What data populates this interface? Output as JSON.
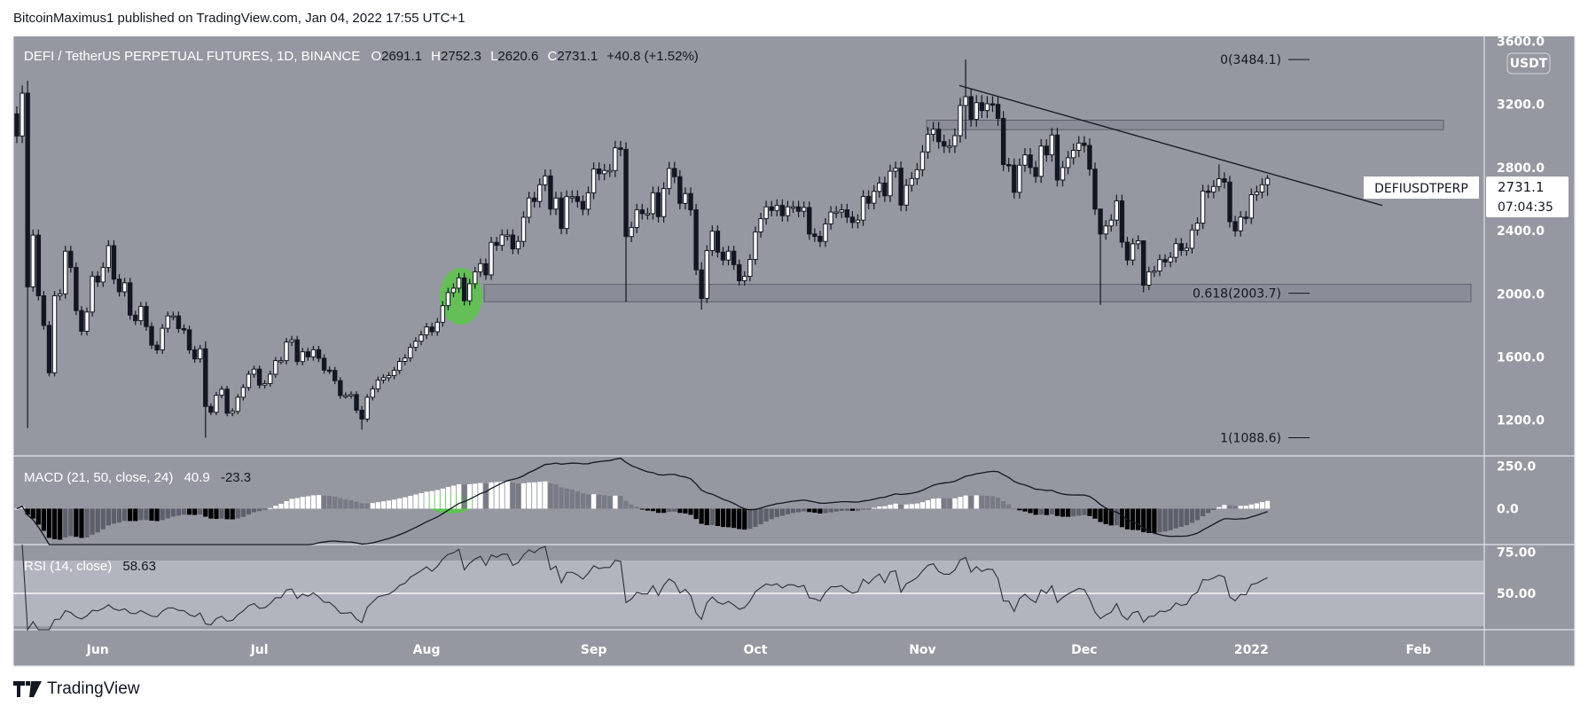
{
  "header": {
    "published": "BitcoinMaximus1 published on TradingView.com, Jan 04, 2022 17:55 UTC+1"
  },
  "legend": {
    "symbol": "DEFI / TetherUS PERPETUAL FUTURES, 1D, BINANCE",
    "o_label": "O",
    "o": "2691.1",
    "h_label": "H",
    "h": "2752.3",
    "l_label": "L",
    "l": "2620.6",
    "c_label": "C",
    "c": "2731.1",
    "change": "+40.8 (+1.52%)"
  },
  "price_axis": {
    "currency": "USDT",
    "ticks": [
      "3600.0",
      "3200.0",
      "2800.0",
      "2400.0",
      "2000.0",
      "1600.0",
      "1200.0"
    ],
    "tick_values": [
      3600,
      3200,
      2800,
      2400,
      2000,
      1600,
      1200
    ],
    "symbol_label": "DEFIUSDTPERP",
    "last_price": "2731.1",
    "countdown": "07:04:35"
  },
  "fib": {
    "level_0": "0(3484.1)",
    "level_0_value": 3484.1,
    "level_618": "0.618(2003.7)",
    "level_618_value": 2003.7,
    "level_1": "1(1088.6)",
    "level_1_value": 1088.6
  },
  "macd": {
    "label": "MACD (21, 50, close, 24)",
    "hist_value": "40.9",
    "macd_value": "-23.3",
    "ticks": [
      "250.0",
      "0.0"
    ],
    "tick_values": [
      250,
      0
    ]
  },
  "rsi": {
    "label": "RSI (14, close)",
    "value": "58.63",
    "ticks": [
      "75.00",
      "50.00"
    ],
    "tick_values": [
      75,
      50
    ]
  },
  "time_axis": {
    "labels": [
      "Jun",
      "Jul",
      "Aug",
      "Sep",
      "Oct",
      "Nov",
      "Dec",
      "2022",
      "Feb"
    ]
  },
  "footer": {
    "brand": "TradingView"
  },
  "colors": {
    "pane_bg": "#9598a1",
    "rsi_band": "#b2b5be",
    "up_candle": "#ffffff",
    "down_candle": "#131722",
    "highlight": "#5cc54a",
    "zone": "#868993"
  },
  "chart_data": {
    "type": "candlestick",
    "title": "DEFI / TetherUS PERPETUAL FUTURES, 1D, BINANCE",
    "x_start": "2021-05-17",
    "x_end": "2022-01-04",
    "interval": "1D",
    "ylim": [
      1000,
      3650
    ],
    "grid": false,
    "closes": [
      3000,
      3271,
      2044,
      2372,
      1988,
      1800,
      1500,
      1988,
      2000,
      2270,
      2167,
      1894,
      1763,
      1885,
      2112,
      2075,
      2167,
      2305,
      2093,
      2013,
      2070,
      1865,
      1830,
      1920,
      1793,
      1675,
      1645,
      1782,
      1860,
      1860,
      1780,
      1772,
      1645,
      1588,
      1652,
      1287,
      1250,
      1358,
      1396,
      1244,
      1256,
      1345,
      1407,
      1491,
      1523,
      1422,
      1432,
      1491,
      1577,
      1577,
      1695,
      1708,
      1571,
      1633,
      1601,
      1646,
      1592,
      1517,
      1515,
      1450,
      1356,
      1356,
      1362,
      1263,
      1207,
      1345,
      1398,
      1454,
      1469,
      1482,
      1515,
      1572,
      1594,
      1661,
      1700,
      1740,
      1790,
      1760,
      1820,
      1925,
      2008,
      2036,
      2101,
      1956,
      2064,
      2139,
      2191,
      2120,
      2326,
      2307,
      2373,
      2373,
      2285,
      2332,
      2485,
      2607,
      2585,
      2691,
      2747,
      2537,
      2607,
      2414,
      2616,
      2616,
      2585,
      2536,
      2640,
      2791,
      2761,
      2781,
      2781,
      2925,
      2915,
      2363,
      2420,
      2532,
      2508,
      2508,
      2640,
      2489,
      2667,
      2794,
      2742,
      2573,
      2635,
      2532,
      2152,
      1971,
      2274,
      2397,
      2264,
      2214,
      2270,
      2185,
      2083,
      2111,
      2218,
      2392,
      2476,
      2551,
      2528,
      2560,
      2495,
      2551,
      2551,
      2523,
      2547,
      2379,
      2364,
      2332,
      2443,
      2518,
      2518,
      2532,
      2486,
      2452,
      2467,
      2617,
      2574,
      2649,
      2702,
      2621,
      2777,
      2796,
      2562,
      2687,
      2730,
      2786,
      2899,
      3011,
      3043,
      2964,
      2936,
      2936,
      3002,
      3193,
      3249,
      3105,
      3211,
      3161,
      3204,
      3200,
      3111,
      2819,
      2815,
      2643,
      2815,
      2880,
      2800,
      2744,
      2936,
      2880,
      3006,
      2721,
      2800,
      2862,
      2909,
      2955,
      2940,
      2790,
      2537,
      2379,
      2430,
      2467,
      2589,
      2327,
      2214,
      2317,
      2336,
      2055,
      2139,
      2145,
      2217,
      2202,
      2231,
      2318,
      2275,
      2289,
      2405,
      2448,
      2651,
      2645,
      2680,
      2729,
      2708,
      2457,
      2399,
      2486,
      2480,
      2628,
      2645,
      2691.1,
      2731.1
    ],
    "wicks": {
      "2": [
        3350,
        1150
      ],
      "35": [
        1700,
        1088.6
      ],
      "64": [
        1290,
        1140
      ],
      "113": [
        2960,
        1950
      ],
      "127": [
        2200,
        1900
      ],
      "176": [
        3484.1,
        2980
      ],
      "201": [
        2540,
        1930
      ],
      "209": [
        2330,
        2010
      ],
      "223": [
        2820,
        2650
      ],
      "232": [
        2752.3,
        2620.6
      ]
    },
    "zones": [
      {
        "from": 3040,
        "to": 3100
      },
      {
        "from": 1950,
        "to": 2060
      }
    ],
    "trendline": {
      "from_price": 3320,
      "to_price": 2560
    }
  }
}
